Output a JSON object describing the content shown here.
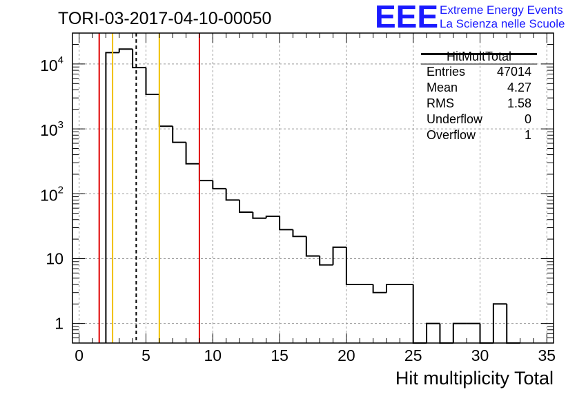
{
  "header": {
    "logo_mark": "EEE",
    "logo_line1": "Extreme Energy Events",
    "logo_line2": "La Scienza nelle Scuole"
  },
  "chart_data": {
    "type": "histogram",
    "title": "TORI-03-2017-04-10-00050",
    "xlabel": "Hit multiplicity Total",
    "ylabel": "",
    "xlim": [
      -0.5,
      35.5
    ],
    "ylim": [
      0.5,
      30000
    ],
    "y_scale": "log",
    "grid": true,
    "bin_width": 1,
    "bins": [
      {
        "x": 2.5,
        "value": 15000
      },
      {
        "x": 3.5,
        "value": 17000
      },
      {
        "x": 4.5,
        "value": 8800
      },
      {
        "x": 5.5,
        "value": 3400
      },
      {
        "x": 6.5,
        "value": 1100
      },
      {
        "x": 7.5,
        "value": 620
      },
      {
        "x": 8.5,
        "value": 290
      },
      {
        "x": 9.5,
        "value": 160
      },
      {
        "x": 10.5,
        "value": 120
      },
      {
        "x": 11.5,
        "value": 80
      },
      {
        "x": 12.5,
        "value": 52
      },
      {
        "x": 13.5,
        "value": 42
      },
      {
        "x": 14.5,
        "value": 45
      },
      {
        "x": 15.5,
        "value": 28
      },
      {
        "x": 16.5,
        "value": 22
      },
      {
        "x": 17.5,
        "value": 11
      },
      {
        "x": 18.5,
        "value": 8
      },
      {
        "x": 19.5,
        "value": 15
      },
      {
        "x": 20.5,
        "value": 4
      },
      {
        "x": 21.5,
        "value": 4
      },
      {
        "x": 22.5,
        "value": 3
      },
      {
        "x": 23.5,
        "value": 4
      },
      {
        "x": 24.5,
        "value": 4
      },
      {
        "x": 25.5,
        "value": 0
      },
      {
        "x": 26.5,
        "value": 1
      },
      {
        "x": 27.5,
        "value": 0
      },
      {
        "x": 28.5,
        "value": 1
      },
      {
        "x": 29.5,
        "value": 1
      },
      {
        "x": 30.5,
        "value": 0
      },
      {
        "x": 31.5,
        "value": 2
      },
      {
        "x": 32.5,
        "value": 0
      }
    ],
    "x_ticks": [
      "0",
      "5",
      "10",
      "15",
      "20",
      "25",
      "30",
      "35"
    ],
    "x_tick_values": [
      0,
      5,
      10,
      15,
      20,
      25,
      30,
      35
    ],
    "y_ticks": [
      {
        "value": 1,
        "base": "1",
        "exp": ""
      },
      {
        "value": 10,
        "base": "10",
        "exp": ""
      },
      {
        "value": 100,
        "base": "10",
        "exp": "2"
      },
      {
        "value": 1000,
        "base": "10",
        "exp": "3"
      },
      {
        "value": 10000,
        "base": "10",
        "exp": "4"
      }
    ],
    "vertical_lines": [
      {
        "x": 1.5,
        "color": "#e00000",
        "style": "solid"
      },
      {
        "x": 2.5,
        "color": "#f0c000",
        "style": "solid"
      },
      {
        "x": 4.27,
        "color": "#000000",
        "style": "dashed"
      },
      {
        "x": 6.0,
        "color": "#f0c000",
        "style": "solid"
      },
      {
        "x": 9.0,
        "color": "#e00000",
        "style": "solid"
      }
    ],
    "stats": {
      "title": "HitMultTotal",
      "rows": [
        {
          "label": "Entries",
          "value": "47014"
        },
        {
          "label": "Mean",
          "value": "4.27"
        },
        {
          "label": "RMS",
          "value": "1.58"
        },
        {
          "label": "Underflow",
          "value": "0"
        },
        {
          "label": "Overflow",
          "value": "1"
        }
      ]
    }
  }
}
